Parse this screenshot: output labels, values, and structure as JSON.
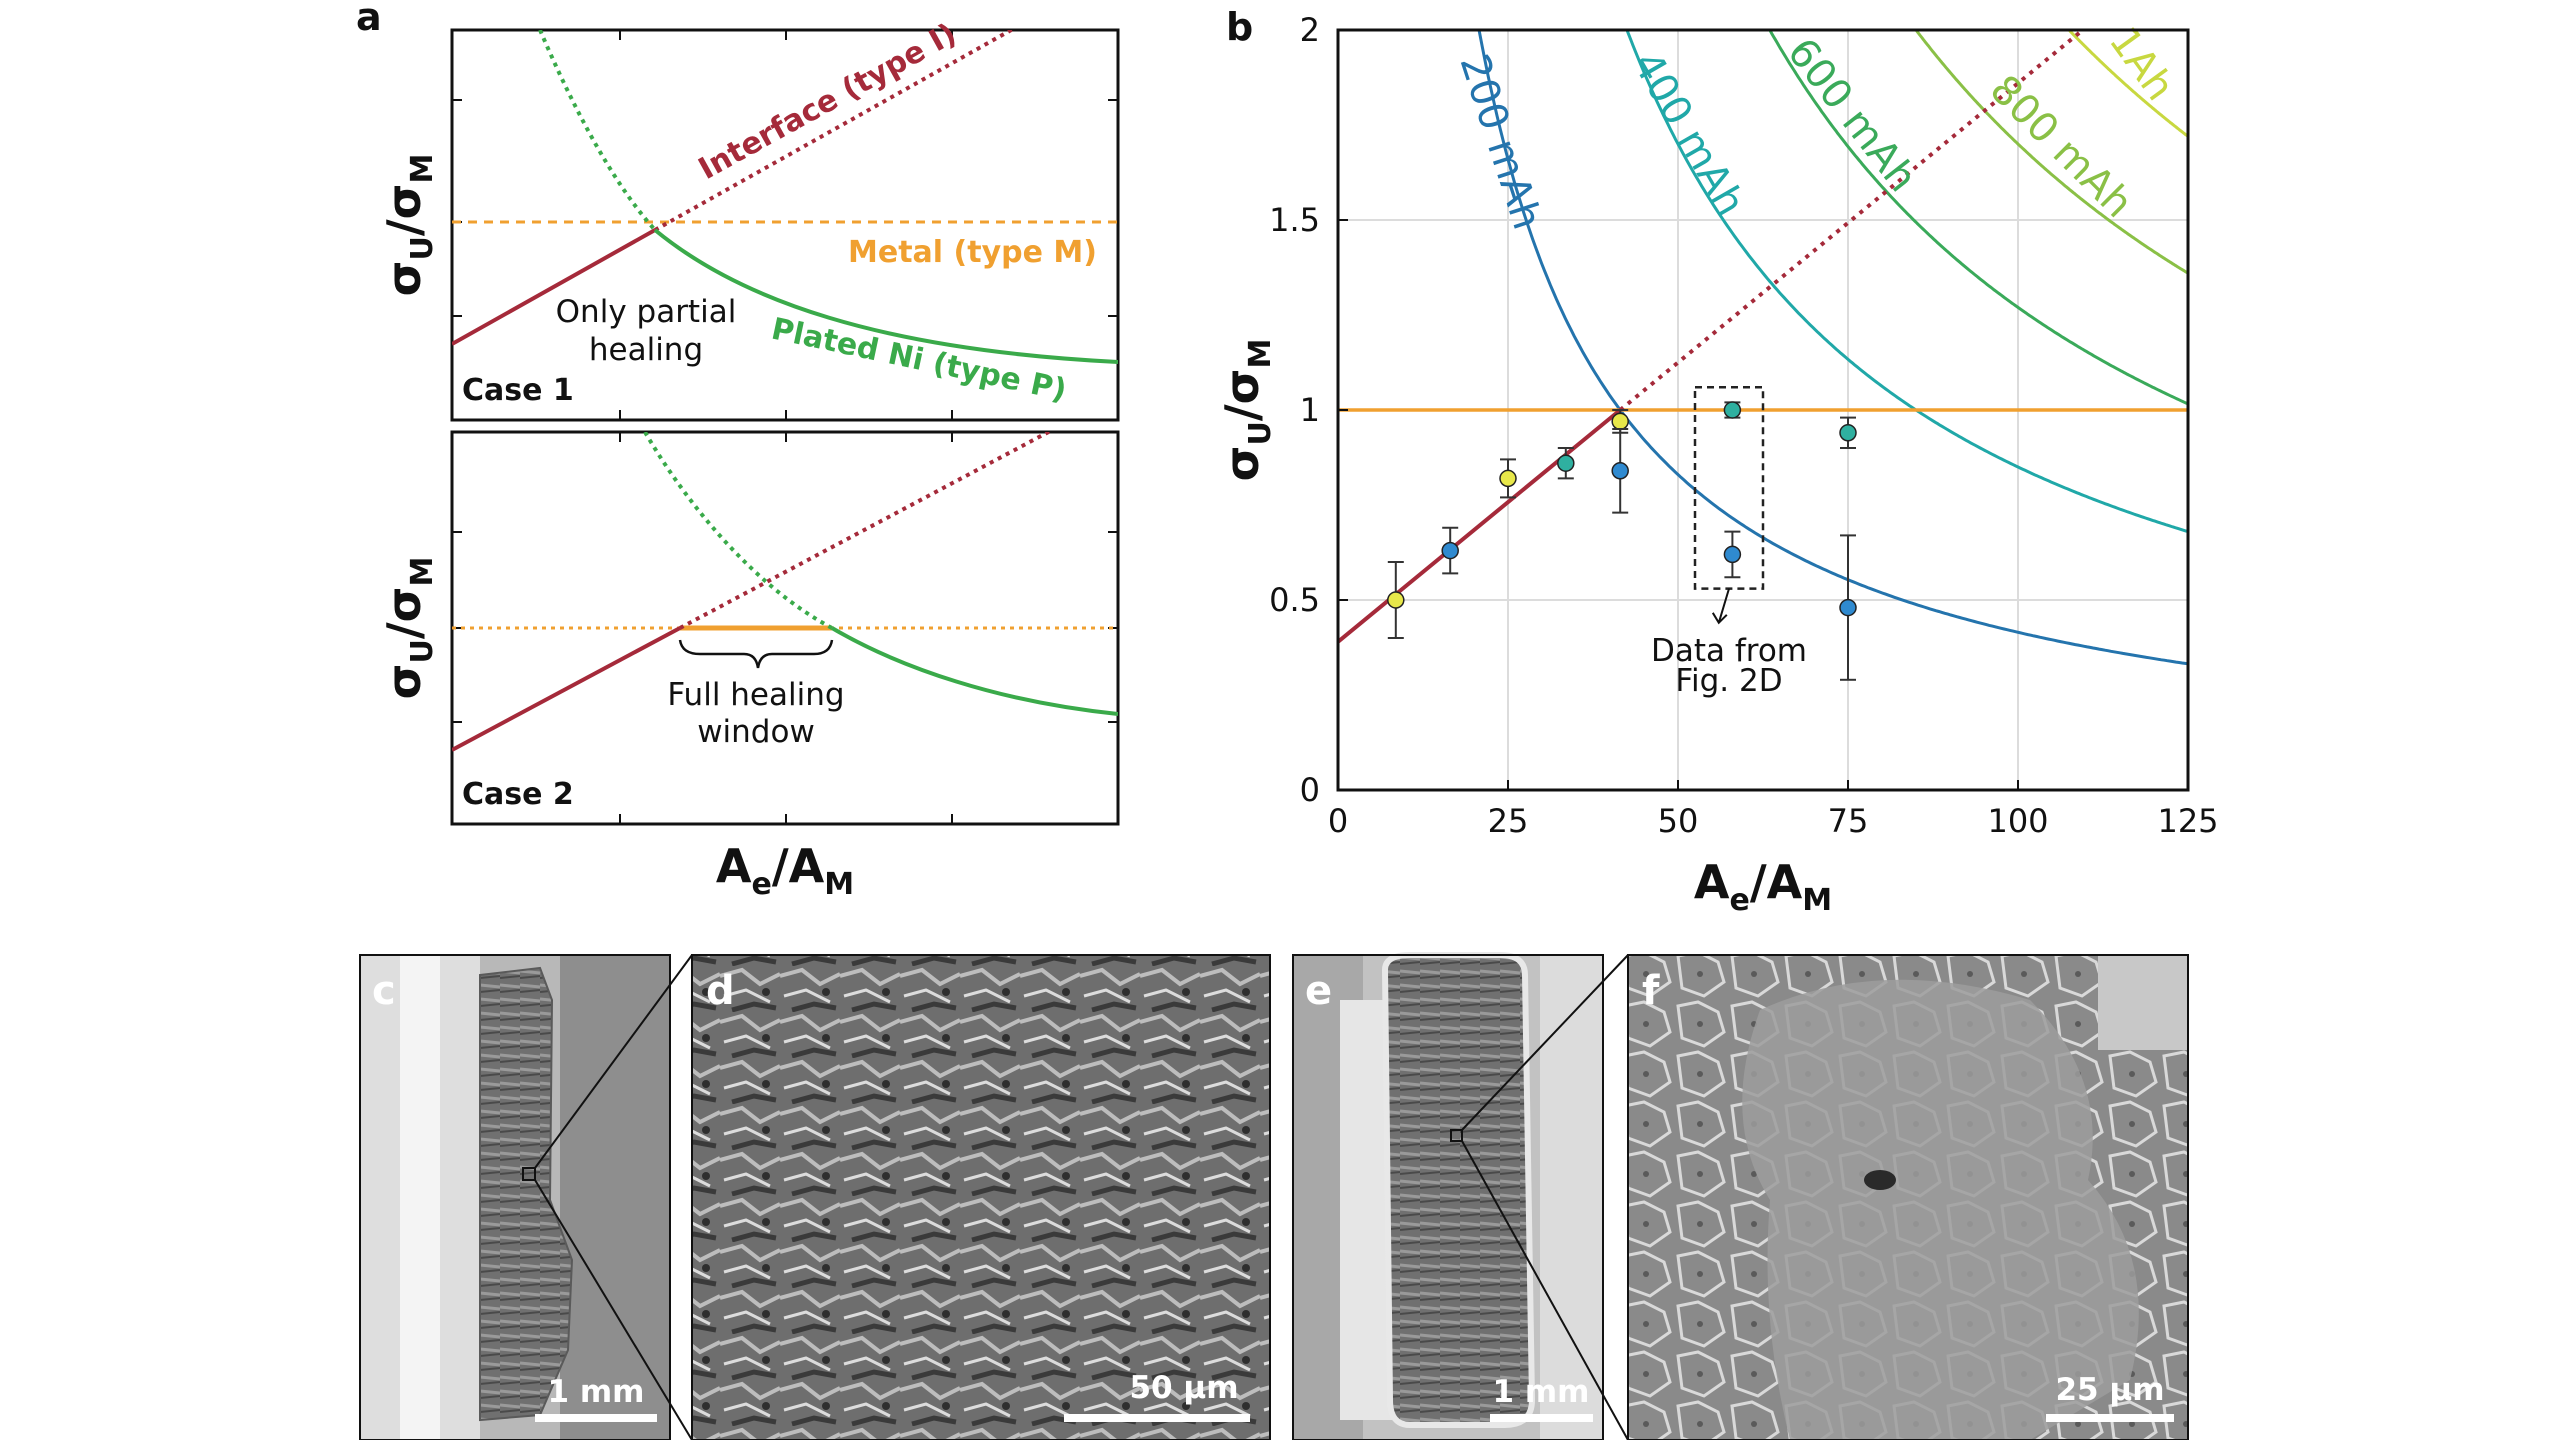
{
  "panel_labels": {
    "a": "a",
    "b": "b",
    "c": "c",
    "d": "d",
    "e": "e",
    "f": "f"
  },
  "panel_a": {
    "ylabel_main": "σ",
    "ylabel_sub1": "U",
    "ylabel_slash": "/σ",
    "ylabel_sub2": "M",
    "xlabel_main": "A",
    "xlabel_sub1": "e",
    "xlabel_slash": "/A",
    "xlabel_sub2": "M",
    "case1": "Case 1",
    "case2": "Case 2",
    "interface_label": "Interface (type I)",
    "metal_label": "Metal (type M)",
    "plated_label": "Plated Ni (type P)",
    "partial_line1": "Only partial",
    "partial_line2": "healing",
    "window_line1": "Full healing",
    "window_line2": "window"
  },
  "chart_data": {
    "type": "scatter",
    "xlabel": "A_e/A_M",
    "ylabel": "σ_U/σ_M",
    "xlim": [
      0,
      125
    ],
    "ylim": [
      0,
      2
    ],
    "xticks": [
      "0",
      "25",
      "50",
      "75",
      "100",
      "125"
    ],
    "yticks": [
      "0",
      "0.5",
      "1",
      "1.5",
      "2"
    ],
    "grid": true,
    "lines": [
      {
        "kind": "interface",
        "intercept": 0.39,
        "slope": 0.0147,
        "color": "#a52a3a"
      },
      {
        "kind": "metal",
        "y": 1.0,
        "color": "#f0a030"
      }
    ],
    "hyperbolas": [
      {
        "label": "200 mAh",
        "k": 41.5,
        "color": "#2474ad"
      },
      {
        "label": "400 mAh",
        "k": 85,
        "color": "#20a8a8"
      },
      {
        "label": "600 mAh",
        "k": 127,
        "color": "#3aaa5a"
      },
      {
        "label": "800 mAh",
        "k": 170,
        "color": "#8ac046"
      },
      {
        "label": "1Ah",
        "k": 215,
        "color": "#c8d840"
      }
    ],
    "points": [
      {
        "x": 8.5,
        "y": 0.5,
        "err": 0.1,
        "color": "#e8e84a"
      },
      {
        "x": 16.5,
        "y": 0.63,
        "err": 0.06,
        "color": "#2f8ad0"
      },
      {
        "x": 25,
        "y": 0.82,
        "err": 0.05,
        "color": "#e8e84a"
      },
      {
        "x": 33.5,
        "y": 0.86,
        "err": 0.04,
        "color": "#2fb0a0"
      },
      {
        "x": 41.5,
        "y": 0.97,
        "err": 0.03,
        "color": "#e8e84a"
      },
      {
        "x": 41.5,
        "y": 0.84,
        "err": 0.11,
        "color": "#2f8ad0"
      },
      {
        "x": 58,
        "y": 1.0,
        "err": 0.02,
        "color": "#2fb0a0"
      },
      {
        "x": 58,
        "y": 0.62,
        "err": 0.06,
        "color": "#2f8ad0"
      },
      {
        "x": 75,
        "y": 0.94,
        "err": 0.04,
        "color": "#2fb0a0"
      },
      {
        "x": 75,
        "y": 0.48,
        "err": 0.19,
        "color": "#2f8ad0"
      }
    ],
    "annotation_line1": "Data from",
    "annotation_line2": "Fig. 2D",
    "ylabel_main": "σ",
    "ylabel_sub1": "U",
    "ylabel_slash": "/σ",
    "ylabel_sub2": "M",
    "xlabel_main": "A",
    "xlabel_sub1": "e",
    "xlabel_slash": "/A",
    "xlabel_sub2": "M"
  },
  "micrographs": {
    "c_scale": "1 mm",
    "d_scale": "50 µm",
    "e_scale": "1 mm",
    "f_scale": "25 µm"
  },
  "colors": {
    "interface": "#a52a3a",
    "metal": "#f0a030",
    "plated": "#3aaa4a"
  }
}
